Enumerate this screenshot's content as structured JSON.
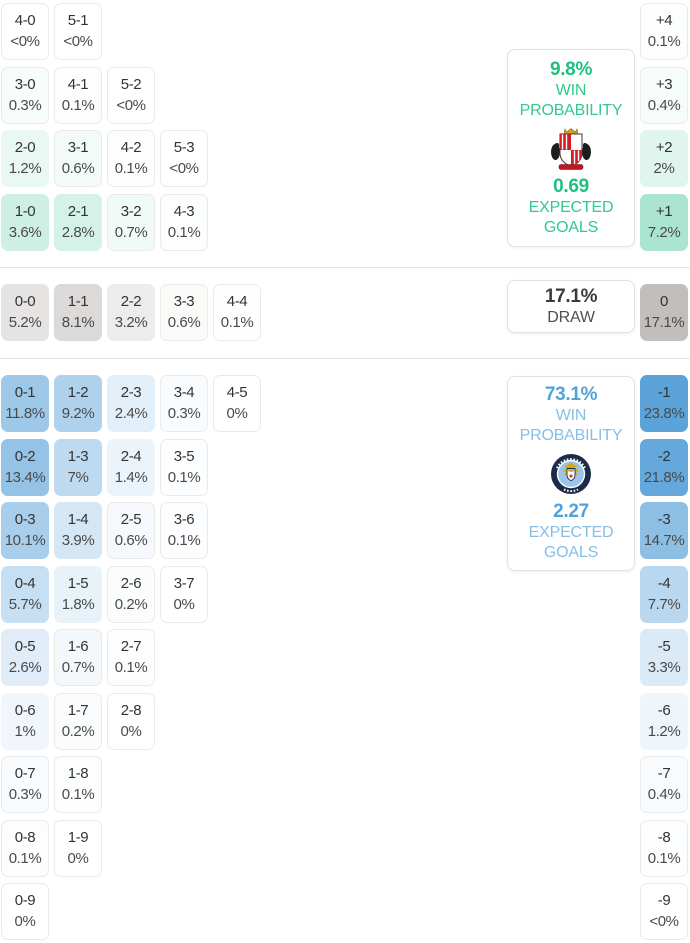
{
  "chart_data": {
    "type": "heatmap",
    "title": "",
    "legend_position": "right",
    "labels": {
      "win_line1": "WIN",
      "win_line2": "PROBABILITY",
      "xg_line1": "EXPECTED",
      "xg_line2": "GOALS",
      "draw": "DRAW"
    },
    "theme": {
      "home_accent": "#1FC07F",
      "home_label": "#32C98B",
      "home_tint": "#2FBE8F",
      "draw_accent": "#3B3B3B",
      "draw_label": "#4F4F4F",
      "draw_tint": "#AFABA7",
      "away_accent": "#4FA3D9",
      "away_label": "#85BFE5",
      "away_tint": "#5AA2D8",
      "score_text": "#333333",
      "pct_text": "#4A4A4A",
      "cell_border": "#ECEAE8",
      "divider": "#E7E5E3"
    },
    "sections": [
      {
        "id": "home",
        "crest_icon": "sunderland-crest",
        "win_probability": "9.8%",
        "expected_goals": "0.69",
        "score_rows": [
          [
            {
              "score": "4-0",
              "pct": "<0%",
              "value": 0
            },
            {
              "score": "5-1",
              "pct": "<0%",
              "value": 0
            }
          ],
          [
            {
              "score": "3-0",
              "pct": "0.3%",
              "value": 0.3
            },
            {
              "score": "4-1",
              "pct": "0.1%",
              "value": 0.1
            },
            {
              "score": "5-2",
              "pct": "<0%",
              "value": 0
            }
          ],
          [
            {
              "score": "2-0",
              "pct": "1.2%",
              "value": 1.2
            },
            {
              "score": "3-1",
              "pct": "0.6%",
              "value": 0.6
            },
            {
              "score": "4-2",
              "pct": "0.1%",
              "value": 0.1
            },
            {
              "score": "5-3",
              "pct": "<0%",
              "value": 0
            }
          ],
          [
            {
              "score": "1-0",
              "pct": "3.6%",
              "value": 3.6
            },
            {
              "score": "2-1",
              "pct": "2.8%",
              "value": 2.8
            },
            {
              "score": "3-2",
              "pct": "0.7%",
              "value": 0.7
            },
            {
              "score": "4-3",
              "pct": "0.1%",
              "value": 0.1
            }
          ]
        ],
        "margins": [
          {
            "label": "+4",
            "pct": "0.1%",
            "value": 0.1
          },
          {
            "label": "+3",
            "pct": "0.4%",
            "value": 0.4
          },
          {
            "label": "+2",
            "pct": "2%",
            "value": 2
          },
          {
            "label": "+1",
            "pct": "7.2%",
            "value": 7.2
          }
        ]
      },
      {
        "id": "draw",
        "probability": "17.1%",
        "score_rows": [
          [
            {
              "score": "0-0",
              "pct": "5.2%",
              "value": 5.2
            },
            {
              "score": "1-1",
              "pct": "8.1%",
              "value": 8.1
            },
            {
              "score": "2-2",
              "pct": "3.2%",
              "value": 3.2
            },
            {
              "score": "3-3",
              "pct": "0.6%",
              "value": 0.6
            },
            {
              "score": "4-4",
              "pct": "0.1%",
              "value": 0.1
            }
          ]
        ],
        "margins": [
          {
            "label": "0",
            "pct": "17.1%",
            "value": 17.1
          }
        ]
      },
      {
        "id": "away",
        "crest_icon": "manchester-city-crest",
        "win_probability": "73.1%",
        "expected_goals": "2.27",
        "score_rows": [
          [
            {
              "score": "0-1",
              "pct": "11.8%",
              "value": 11.8
            },
            {
              "score": "1-2",
              "pct": "9.2%",
              "value": 9.2
            },
            {
              "score": "2-3",
              "pct": "2.4%",
              "value": 2.4
            },
            {
              "score": "3-4",
              "pct": "0.3%",
              "value": 0.3
            },
            {
              "score": "4-5",
              "pct": "0%",
              "value": 0
            }
          ],
          [
            {
              "score": "0-2",
              "pct": "13.4%",
              "value": 13.4
            },
            {
              "score": "1-3",
              "pct": "7%",
              "value": 7
            },
            {
              "score": "2-4",
              "pct": "1.4%",
              "value": 1.4
            },
            {
              "score": "3-5",
              "pct": "0.1%",
              "value": 0.1
            }
          ],
          [
            {
              "score": "0-3",
              "pct": "10.1%",
              "value": 10.1
            },
            {
              "score": "1-4",
              "pct": "3.9%",
              "value": 3.9
            },
            {
              "score": "2-5",
              "pct": "0.6%",
              "value": 0.6
            },
            {
              "score": "3-6",
              "pct": "0.1%",
              "value": 0.1
            }
          ],
          [
            {
              "score": "0-4",
              "pct": "5.7%",
              "value": 5.7
            },
            {
              "score": "1-5",
              "pct": "1.8%",
              "value": 1.8
            },
            {
              "score": "2-6",
              "pct": "0.2%",
              "value": 0.2
            },
            {
              "score": "3-7",
              "pct": "0%",
              "value": 0
            }
          ],
          [
            {
              "score": "0-5",
              "pct": "2.6%",
              "value": 2.6
            },
            {
              "score": "1-6",
              "pct": "0.7%",
              "value": 0.7
            },
            {
              "score": "2-7",
              "pct": "0.1%",
              "value": 0.1
            }
          ],
          [
            {
              "score": "0-6",
              "pct": "1%",
              "value": 1
            },
            {
              "score": "1-7",
              "pct": "0.2%",
              "value": 0.2
            },
            {
              "score": "2-8",
              "pct": "0%",
              "value": 0
            }
          ],
          [
            {
              "score": "0-7",
              "pct": "0.3%",
              "value": 0.3
            },
            {
              "score": "1-8",
              "pct": "0.1%",
              "value": 0.1
            }
          ],
          [
            {
              "score": "0-8",
              "pct": "0.1%",
              "value": 0.1
            },
            {
              "score": "1-9",
              "pct": "0%",
              "value": 0
            }
          ],
          [
            {
              "score": "0-9",
              "pct": "0%",
              "value": 0
            }
          ]
        ],
        "margins": [
          {
            "label": "-1",
            "pct": "23.8%",
            "value": 23.8
          },
          {
            "label": "-2",
            "pct": "21.8%",
            "value": 21.8
          },
          {
            "label": "-3",
            "pct": "14.7%",
            "value": 14.7
          },
          {
            "label": "-4",
            "pct": "7.7%",
            "value": 7.7
          },
          {
            "label": "-5",
            "pct": "3.3%",
            "value": 3.3
          },
          {
            "label": "-6",
            "pct": "1.2%",
            "value": 1.2
          },
          {
            "label": "-7",
            "pct": "0.4%",
            "value": 0.4
          },
          {
            "label": "-8",
            "pct": "0.1%",
            "value": 0.1
          },
          {
            "label": "-9",
            "pct": "<0%",
            "value": 0
          }
        ]
      }
    ]
  }
}
